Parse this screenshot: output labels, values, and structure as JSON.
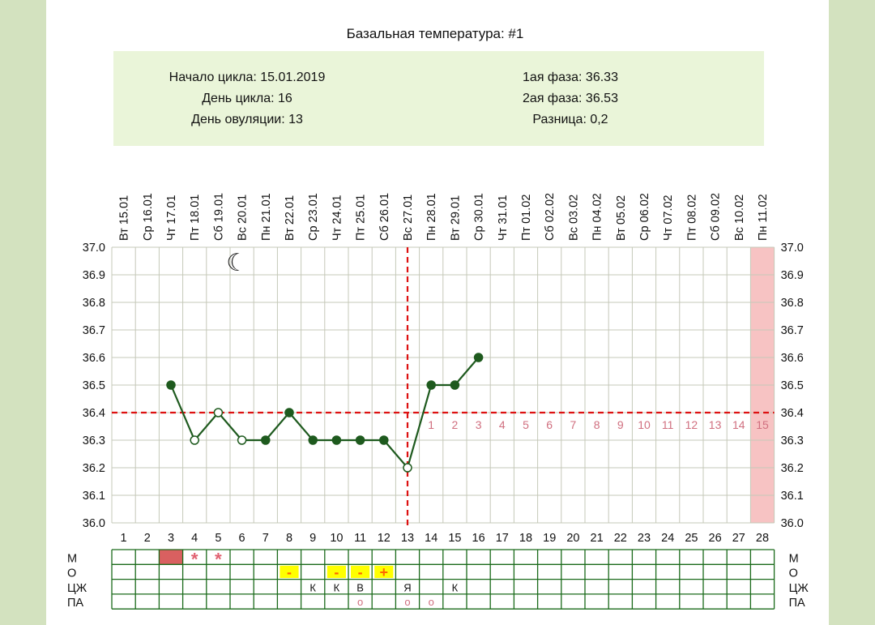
{
  "chart_data": {
    "type": "line",
    "title": "Базальная температура: #1",
    "info": {
      "cycle_start": "Начало цикла: 15.01.2019",
      "cycle_day": "День цикла: 16",
      "ovulation_day": "День овуляции: 13",
      "phase1": "1ая фаза: 36.33",
      "phase2": "2ая фаза: 36.53",
      "difference": "Разница: 0,2"
    },
    "dates": [
      "Вт 15.01",
      "Ср 16.01",
      "Чт 17.01",
      "Пт 18.01",
      "Сб 19.01",
      "Вс 20.01",
      "Пн 21.01",
      "Вт 22.01",
      "Ср 23.01",
      "Чт 24.01",
      "Пт 25.01",
      "Сб 26.01",
      "Вс 27.01",
      "Пн 28.01",
      "Вт 29.01",
      "Ср 30.01",
      "Чт 31.01",
      "Пт 01.02",
      "Сб 02.02",
      "Вс 03.02",
      "Пн 04.02",
      "Вт 05.02",
      "Ср 06.02",
      "Чт 07.02",
      "Пт 08.02",
      "Сб 09.02",
      "Вс 10.02",
      "Пн 11.02"
    ],
    "days": [
      "1",
      "2",
      "3",
      "4",
      "5",
      "6",
      "7",
      "8",
      "9",
      "10",
      "11",
      "12",
      "13",
      "14",
      "15",
      "16",
      "17",
      "18",
      "19",
      "20",
      "21",
      "22",
      "23",
      "24",
      "25",
      "26",
      "27",
      "28"
    ],
    "y_ticks": [
      "37.0",
      "36.9",
      "36.8",
      "36.7",
      "36.6",
      "36.5",
      "36.4",
      "36.3",
      "36.2",
      "36.1",
      "36.0"
    ],
    "ylim": [
      36.0,
      37.0
    ],
    "series": [
      {
        "points": [
          {
            "day": 3,
            "temp": 36.5,
            "filled": true
          },
          {
            "day": 4,
            "temp": 36.3,
            "filled": false
          },
          {
            "day": 5,
            "temp": 36.4,
            "filled": false
          },
          {
            "day": 6,
            "temp": 36.3,
            "filled": false
          },
          {
            "day": 7,
            "temp": 36.3,
            "filled": true
          },
          {
            "day": 8,
            "temp": 36.4,
            "filled": true
          },
          {
            "day": 9,
            "temp": 36.3,
            "filled": true
          },
          {
            "day": 10,
            "temp": 36.3,
            "filled": true
          },
          {
            "day": 11,
            "temp": 36.3,
            "filled": true
          },
          {
            "day": 12,
            "temp": 36.3,
            "filled": true
          },
          {
            "day": 13,
            "temp": 36.2,
            "filled": false
          },
          {
            "day": 14,
            "temp": 36.5,
            "filled": true
          },
          {
            "day": 15,
            "temp": 36.5,
            "filled": true
          },
          {
            "day": 16,
            "temp": 36.6,
            "filled": true
          }
        ],
        "color": "#1e5a1e"
      }
    ],
    "coverline_temp": 36.4,
    "ovulation_day_line": 13,
    "phase_counter": {
      "start_day": 14,
      "labels": [
        "1",
        "2",
        "3",
        "4",
        "5",
        "6",
        "7",
        "8",
        "9",
        "10",
        "11",
        "12",
        "13",
        "14",
        "15"
      ]
    },
    "highlight_day": 28,
    "moon_day": 6,
    "moon_temp": 36.95,
    "moon_symbol": "☾",
    "rows": [
      {
        "label": "М"
      },
      {
        "label": "О"
      },
      {
        "label": "ЦЖ"
      },
      {
        "label": "ПА"
      }
    ],
    "row_marks": {
      "m_fill": [
        3
      ],
      "m_star": [
        4,
        5
      ],
      "star_symbol": "*",
      "o_marks": [
        {
          "day": 8,
          "text": "-"
        },
        {
          "day": 10,
          "text": "-"
        },
        {
          "day": 11,
          "text": "-"
        },
        {
          "day": 12,
          "text": "+"
        }
      ],
      "cz_marks": [
        {
          "day": 9,
          "text": "К"
        },
        {
          "day": 10,
          "text": "К"
        },
        {
          "day": 11,
          "text": "В"
        },
        {
          "day": 13,
          "text": "Я"
        },
        {
          "day": 15,
          "text": "К"
        }
      ],
      "pa_marks": [
        11,
        13,
        14
      ],
      "circle_symbol": "о"
    },
    "colors": {
      "grid": "#c5c8b8",
      "table_grid": "#1a6a1a",
      "data_line": "#1e5a1e",
      "dashed": "#dd1111",
      "phase_numbers": "#d06f7f",
      "highlight": "#f7c3c3",
      "info_bg": "#eaf5d9",
      "m_fill": "#d96060",
      "o_fill": "#ffff00",
      "o_text": "#ff6600",
      "star": "#e06070"
    }
  }
}
